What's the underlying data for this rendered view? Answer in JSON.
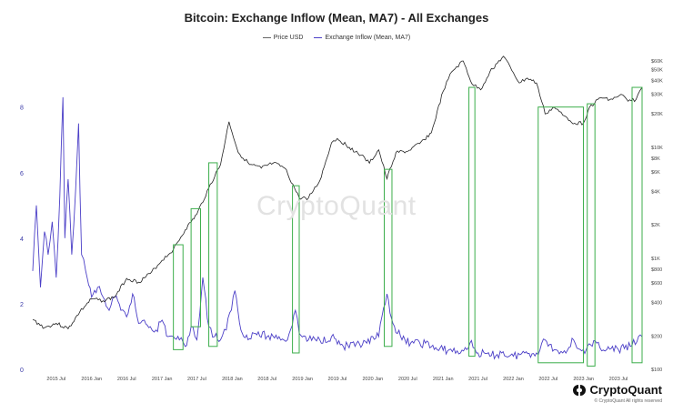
{
  "chart_data": {
    "type": "line",
    "title": "Bitcoin: Exchange Inflow (Mean, MA7) - All Exchanges",
    "xlabel": "",
    "ylabel": "",
    "legend_position": "top-center",
    "grid": false,
    "x_ticks": [
      "2015 Jul",
      "2016 Jan",
      "2016 Jul",
      "2017 Jan",
      "2017 Jul",
      "2018 Jan",
      "2018 Jul",
      "2019 Jan",
      "2019 Jul",
      "2020 Jan",
      "2020 Jul",
      "2021 Jan",
      "2021 Jul",
      "2022 Jan",
      "2022 Jul",
      "2023 Jan",
      "2023 Jul"
    ],
    "y_left_ticks": [
      "0",
      "2",
      "4",
      "6",
      "8"
    ],
    "y_left_lim": [
      0,
      9.6
    ],
    "y_right_ticks": [
      "$60K",
      "$50K",
      "$40K",
      "$30K",
      "$20K",
      "$10K",
      "$8K",
      "$6K",
      "$4K",
      "$2K",
      "$1K",
      "$800",
      "$600",
      "$400",
      "$200",
      "$100"
    ],
    "y_right_scale": "log",
    "x_range": [
      "2015-03-01",
      "2023-11-01"
    ],
    "series": [
      {
        "name": "Price USD",
        "axis": "right",
        "color": "#222222",
        "points": [
          [
            "2015-03-01",
            280
          ],
          [
            "2015-05-01",
            237
          ],
          [
            "2015-07-01",
            260
          ],
          [
            "2015-09-01",
            232
          ],
          [
            "2015-11-01",
            330
          ],
          [
            "2016-01-01",
            430
          ],
          [
            "2016-03-01",
            415
          ],
          [
            "2016-05-01",
            450
          ],
          [
            "2016-07-01",
            660
          ],
          [
            "2016-09-01",
            610
          ],
          [
            "2016-11-01",
            730
          ],
          [
            "2017-01-01",
            960
          ],
          [
            "2017-03-01",
            1200
          ],
          [
            "2017-05-01",
            1800
          ],
          [
            "2017-07-01",
            2500
          ],
          [
            "2017-09-01",
            4300
          ],
          [
            "2017-11-01",
            7000
          ],
          [
            "2017-12-15",
            17000
          ],
          [
            "2018-02-01",
            9000
          ],
          [
            "2018-04-01",
            7000
          ],
          [
            "2018-06-01",
            6500
          ],
          [
            "2018-08-01",
            7200
          ],
          [
            "2018-10-01",
            6500
          ],
          [
            "2018-12-15",
            3500
          ],
          [
            "2019-02-01",
            3500
          ],
          [
            "2019-04-01",
            5000
          ],
          [
            "2019-06-01",
            11000
          ],
          [
            "2019-07-01",
            12000
          ],
          [
            "2019-09-01",
            10000
          ],
          [
            "2019-11-01",
            8500
          ],
          [
            "2019-12-15",
            7200
          ],
          [
            "2020-02-01",
            9500
          ],
          [
            "2020-03-15",
            5200
          ],
          [
            "2020-05-01",
            9000
          ],
          [
            "2020-07-01",
            9200
          ],
          [
            "2020-09-01",
            10800
          ],
          [
            "2020-11-01",
            13500
          ],
          [
            "2021-01-01",
            32000
          ],
          [
            "2021-02-15",
            48000
          ],
          [
            "2021-04-15",
            60000
          ],
          [
            "2021-06-01",
            37000
          ],
          [
            "2021-07-15",
            33000
          ],
          [
            "2021-09-01",
            48000
          ],
          [
            "2021-11-10",
            66000
          ],
          [
            "2022-01-01",
            47000
          ],
          [
            "2022-02-01",
            38000
          ],
          [
            "2022-03-15",
            42000
          ],
          [
            "2022-05-01",
            38000
          ],
          [
            "2022-06-15",
            20000
          ],
          [
            "2022-08-01",
            23000
          ],
          [
            "2022-09-15",
            19500
          ],
          [
            "2022-11-15",
            16500
          ],
          [
            "2022-12-31",
            16500
          ],
          [
            "2023-02-01",
            23000
          ],
          [
            "2023-04-01",
            28000
          ],
          [
            "2023-06-01",
            27000
          ],
          [
            "2023-07-15",
            30000
          ],
          [
            "2023-08-20",
            26000
          ],
          [
            "2023-10-01",
            27000
          ],
          [
            "2023-10-31",
            34500
          ]
        ]
      },
      {
        "name": "Exchange Inflow (Mean, MA7)",
        "axis": "left",
        "color": "#4b3fc7",
        "points": [
          [
            "2015-03-01",
            3.0
          ],
          [
            "2015-03-20",
            5.0
          ],
          [
            "2015-04-10",
            2.5
          ],
          [
            "2015-05-01",
            4.2
          ],
          [
            "2015-05-20",
            3.5
          ],
          [
            "2015-06-10",
            4.5
          ],
          [
            "2015-07-01",
            2.8
          ],
          [
            "2015-07-20",
            5.3
          ],
          [
            "2015-08-05",
            8.3
          ],
          [
            "2015-08-15",
            4.0
          ],
          [
            "2015-09-01",
            5.8
          ],
          [
            "2015-09-20",
            3.5
          ],
          [
            "2015-10-10",
            5.5
          ],
          [
            "2015-10-25",
            7.5
          ],
          [
            "2015-11-10",
            3.5
          ],
          [
            "2015-12-01",
            3.0
          ],
          [
            "2016-01-01",
            2.2
          ],
          [
            "2016-02-01",
            2.5
          ],
          [
            "2016-03-01",
            2.2
          ],
          [
            "2016-04-01",
            1.8
          ],
          [
            "2016-05-01",
            2.2
          ],
          [
            "2016-06-01",
            1.8
          ],
          [
            "2016-07-01",
            1.6
          ],
          [
            "2016-08-01",
            2.3
          ],
          [
            "2016-09-01",
            1.4
          ],
          [
            "2016-10-01",
            1.5
          ],
          [
            "2016-11-01",
            1.3
          ],
          [
            "2016-12-01",
            1.2
          ],
          [
            "2017-01-01",
            1.5
          ],
          [
            "2017-02-01",
            1.0
          ],
          [
            "2017-03-01",
            1.0
          ],
          [
            "2017-04-01",
            0.9
          ],
          [
            "2017-05-01",
            0.7
          ],
          [
            "2017-06-01",
            1.3
          ],
          [
            "2017-07-01",
            0.9
          ],
          [
            "2017-08-01",
            2.8
          ],
          [
            "2017-09-01",
            1.3
          ],
          [
            "2017-10-01",
            1.0
          ],
          [
            "2017-11-01",
            0.9
          ],
          [
            "2017-12-01",
            1.2
          ],
          [
            "2018-01-15",
            2.4
          ],
          [
            "2018-02-15",
            1.2
          ],
          [
            "2018-03-01",
            1.0
          ],
          [
            "2018-05-01",
            1.1
          ],
          [
            "2018-07-01",
            1.0
          ],
          [
            "2018-09-01",
            1.0
          ],
          [
            "2018-10-15",
            0.9
          ],
          [
            "2018-11-25",
            1.8
          ],
          [
            "2018-12-15",
            1.1
          ],
          [
            "2019-02-01",
            0.9
          ],
          [
            "2019-04-01",
            0.9
          ],
          [
            "2019-06-01",
            1.0
          ],
          [
            "2019-08-01",
            0.7
          ],
          [
            "2019-10-01",
            0.7
          ],
          [
            "2019-12-01",
            0.8
          ],
          [
            "2020-02-01",
            1.0
          ],
          [
            "2020-03-15",
            2.3
          ],
          [
            "2020-04-15",
            1.4
          ],
          [
            "2020-06-01",
            0.9
          ],
          [
            "2020-08-01",
            0.8
          ],
          [
            "2020-10-01",
            0.8
          ],
          [
            "2020-12-01",
            0.6
          ],
          [
            "2021-02-01",
            0.6
          ],
          [
            "2021-04-01",
            0.5
          ],
          [
            "2021-05-20",
            0.8
          ],
          [
            "2021-07-01",
            0.5
          ],
          [
            "2021-09-01",
            0.4
          ],
          [
            "2021-11-01",
            0.5
          ],
          [
            "2022-01-01",
            0.4
          ],
          [
            "2022-03-01",
            0.5
          ],
          [
            "2022-05-01",
            0.5
          ],
          [
            "2022-06-15",
            0.9
          ],
          [
            "2022-08-01",
            0.6
          ],
          [
            "2022-09-15",
            0.5
          ],
          [
            "2022-11-10",
            0.9
          ],
          [
            "2022-12-15",
            0.6
          ],
          [
            "2023-01-15",
            0.6
          ],
          [
            "2023-03-10",
            0.8
          ],
          [
            "2023-05-01",
            0.6
          ],
          [
            "2023-07-01",
            0.6
          ],
          [
            "2023-09-01",
            0.7
          ],
          [
            "2023-10-31",
            1.0
          ]
        ]
      }
    ],
    "highlight_boxes": [
      {
        "from": "2017-03-01",
        "to": "2017-04-20",
        "top": 3.8,
        "bottom": 0.6
      },
      {
        "from": "2017-06-01",
        "to": "2017-07-20",
        "top": 4.9,
        "bottom": 1.3
      },
      {
        "from": "2017-09-01",
        "to": "2017-10-15",
        "top": 6.3,
        "bottom": 0.7
      },
      {
        "from": "2018-11-10",
        "to": "2018-12-15",
        "top": 5.6,
        "bottom": 0.5
      },
      {
        "from": "2020-03-01",
        "to": "2020-04-10",
        "top": 6.1,
        "bottom": 0.7
      },
      {
        "from": "2021-05-15",
        "to": "2021-06-15",
        "top": 8.6,
        "bottom": 0.4
      },
      {
        "from": "2022-05-10",
        "to": "2022-12-31",
        "top": 8.0,
        "bottom": 0.2
      },
      {
        "from": "2023-01-20",
        "to": "2023-03-01",
        "top": 8.1,
        "bottom": 0.1
      },
      {
        "from": "2023-09-10",
        "to": "2023-11-01",
        "top": 8.6,
        "bottom": 0.2
      }
    ]
  },
  "watermark": "CryptoQuant",
  "brand": {
    "name": "CryptoQuant",
    "copyright": "© CryptoQuant All rights reserved"
  }
}
